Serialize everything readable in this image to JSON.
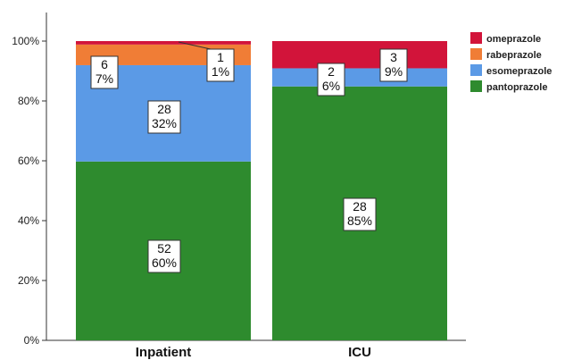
{
  "chart_data": {
    "type": "bar",
    "stacked": true,
    "percent_stacked": true,
    "title": "",
    "xlabel": "",
    "ylabel": "",
    "ylim": [
      0,
      100
    ],
    "yticks": [
      "0%",
      "20%",
      "40%",
      "60%",
      "80%",
      "100%"
    ],
    "grid": false,
    "legend_position": "right",
    "categories": [
      "Inpatient",
      "ICU"
    ],
    "series": [
      {
        "name": "pantoprazole",
        "color": "#2e8b2e",
        "counts": [
          52,
          28
        ],
        "percents": [
          60,
          85
        ],
        "labels": [
          [
            "52",
            "60%"
          ],
          [
            "28",
            "85%"
          ]
        ]
      },
      {
        "name": "esomeprazole",
        "color": "#5b9ae6",
        "counts": [
          28,
          2
        ],
        "percents": [
          32,
          6
        ],
        "labels": [
          [
            "28",
            "32%"
          ],
          [
            "2",
            "6%"
          ]
        ]
      },
      {
        "name": "rabeprazole",
        "color": "#f07d36",
        "counts": [
          6,
          0
        ],
        "percents": [
          7,
          0
        ],
        "labels": [
          [
            "6",
            "7%"
          ],
          null
        ]
      },
      {
        "name": "omeprazole",
        "color": "#d2143a",
        "counts": [
          1,
          3
        ],
        "percents": [
          1,
          9
        ],
        "labels": [
          [
            "1",
            "1%"
          ],
          [
            "3",
            "9%"
          ]
        ]
      }
    ],
    "legend_order": [
      "omeprazole",
      "rabeprazole",
      "esomeprazole",
      "pantoprazole"
    ]
  }
}
